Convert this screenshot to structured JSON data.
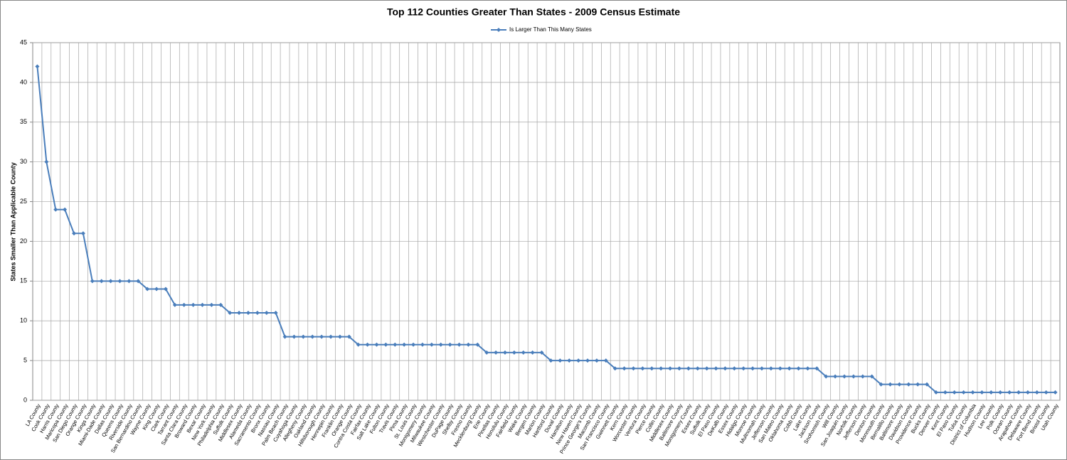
{
  "chart_data": {
    "type": "line",
    "title": "Top 112 Counties Greater Than States - 2009 Census Estimate",
    "y_label": "States Smaller Than Applicable County",
    "ylim": [
      0,
      45
    ],
    "yticks": [
      0,
      5,
      10,
      15,
      20,
      25,
      30,
      35,
      40,
      45
    ],
    "grid": true,
    "legend": "top",
    "categories": [
      "LA County",
      "Cook County",
      "Harris County",
      "Maricopa County",
      "San Diego County",
      "Orange County",
      "Kings County",
      "Miami-Dade County",
      "Dallas County",
      "Queens County",
      "Riverside County",
      "San Bernardino County",
      "Wayne County",
      "King County",
      "Clark County",
      "Tarrant County",
      "Santa Clara County",
      "Broward County",
      "Bexar County",
      "New York County",
      "Philadelphia County",
      "Suffolk County",
      "Middlesex County",
      "Alameda County",
      "Sacramento County",
      "Bronx County",
      "Nassau County",
      "Palm Beach County",
      "Cuyahoga County",
      "Allegheny County",
      "Oakland County",
      "Hillsborough County",
      "Hennepin County",
      "Franklin County",
      "Orange County",
      "Contra Costa County",
      "Fairfax County",
      "Salt Lake County",
      "Fulton County",
      "Travis County",
      "Pima County",
      "St. Louis County",
      "Montgomery County",
      "Milwaukee County",
      "Westchester County",
      "DuPage County",
      "Shelby County",
      "Fresno County",
      "Mecklenburg County",
      "Erie County",
      "Pinellas County",
      "Honolulu County",
      "Fairfield County",
      "Wake County",
      "Bergen County",
      "Marion County",
      "Hartford County",
      "Duval County",
      "Hamilton County",
      "New Haven County",
      "Prince George's County",
      "Macomb County",
      "San Francisco County",
      "Gwinnett County",
      "Kern County",
      "Worcester County",
      "Ventura County",
      "Pierce County",
      "Collin County",
      "Middlesex County",
      "Baltimore County",
      "Montgomery County",
      "Essex County",
      "Suffolk County",
      "El Paso County",
      "DeKalb County",
      "Essex County",
      "Hidalgo County",
      "Monroe County",
      "Multnomah County",
      "Jefferson County",
      "San Mateo County",
      "Oklahoma County",
      "Cobb County",
      "Lake County",
      "Jackson County",
      "Snohomish County",
      "Will County",
      "San Joaquin County",
      "Norfolk County",
      "Jefferson County",
      "Denton County",
      "Monmouth County",
      "Bernalillo County",
      "Baltimore County",
      "Davidson County",
      "Providence County",
      "Bucks County",
      "Denver County",
      "Kent County",
      "El Paso County",
      "Tulsa County",
      "District of Columbia",
      "Hudson County",
      "Lee County",
      "Polk County",
      "Ocean County",
      "Arapahoe County",
      "Delaware County",
      "Fort Bend County",
      "Bristol County",
      "Utah County"
    ],
    "series": [
      {
        "name": "Is Larger Than This Many States",
        "color": "#4a7ebb",
        "values": [
          42,
          30,
          24,
          24,
          21,
          21,
          15,
          15,
          15,
          15,
          15,
          15,
          14,
          14,
          14,
          12,
          12,
          12,
          12,
          12,
          12,
          11,
          11,
          11,
          11,
          11,
          11,
          8,
          8,
          8,
          8,
          8,
          8,
          8,
          8,
          7,
          7,
          7,
          7,
          7,
          7,
          7,
          7,
          7,
          7,
          7,
          7,
          7,
          7,
          6,
          6,
          6,
          6,
          6,
          6,
          6,
          5,
          5,
          5,
          5,
          5,
          5,
          5,
          4,
          4,
          4,
          4,
          4,
          4,
          4,
          4,
          4,
          4,
          4,
          4,
          4,
          4,
          4,
          4,
          4,
          4,
          4,
          4,
          4,
          4,
          4,
          3,
          3,
          3,
          3,
          3,
          3,
          2,
          2,
          2,
          2,
          2,
          2,
          1,
          1,
          1,
          1,
          1,
          1,
          1,
          1,
          1,
          1,
          1,
          1,
          1,
          1
        ]
      }
    ]
  }
}
